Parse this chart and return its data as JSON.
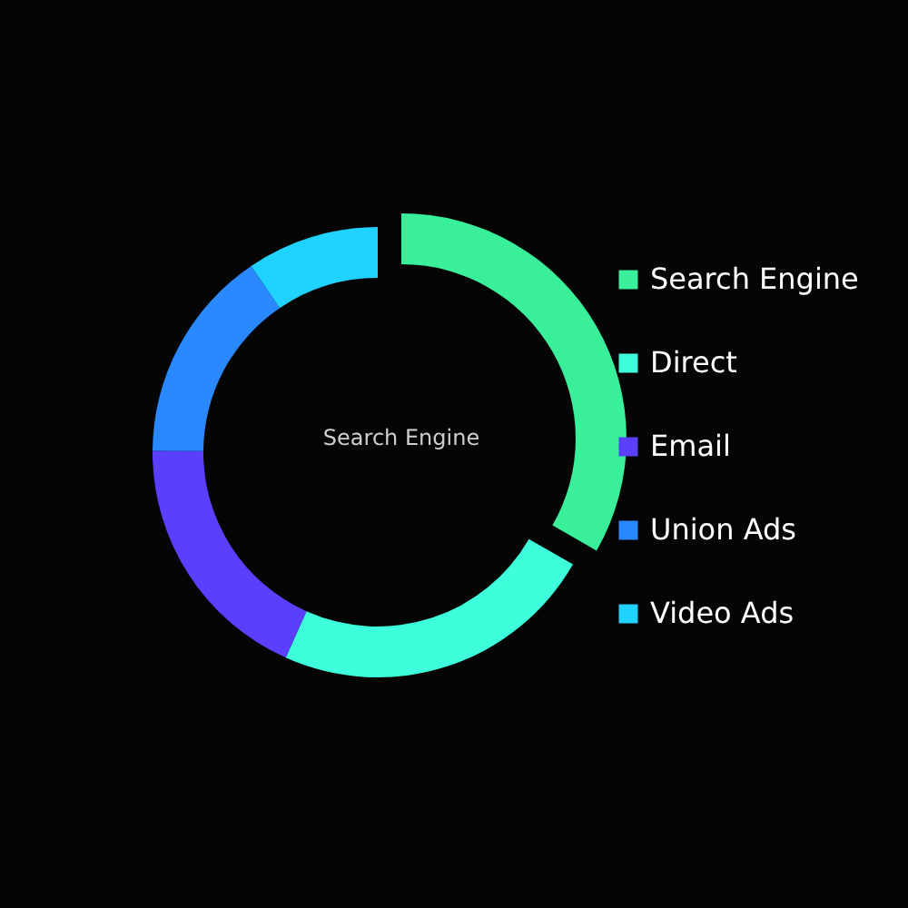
{
  "chart_data": {
    "type": "donut",
    "categories": [
      "Search Engine",
      "Direct",
      "Email",
      "Union Ads",
      "Video Ads"
    ],
    "values": [
      33.3,
      23.4,
      18.4,
      15.4,
      9.5
    ],
    "colors": [
      "#3aef9a",
      "#3effdc",
      "#5a3ffe",
      "#2a89ff",
      "#20d2ff"
    ],
    "legend": "right",
    "annotations": [
      "Search Engine"
    ]
  }
}
